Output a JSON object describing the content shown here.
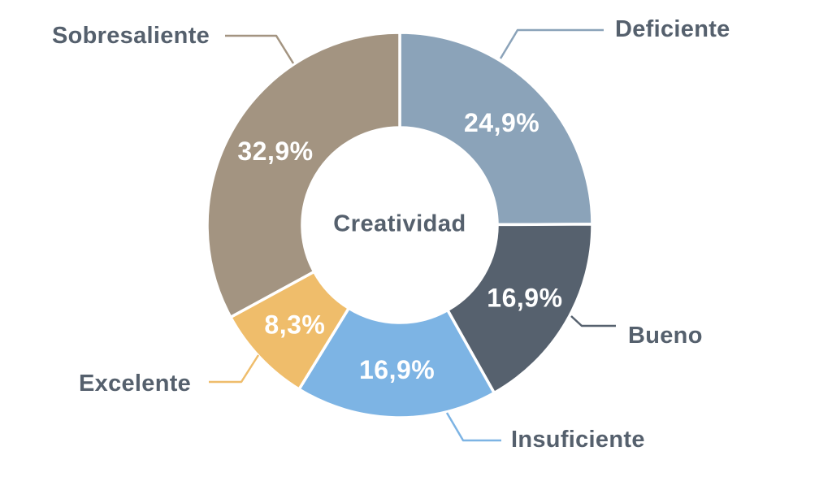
{
  "chart_data": {
    "type": "pie",
    "subtype": "donut",
    "title": "Creatividad",
    "center_label": "Creatividad",
    "start_angle_deg": 0,
    "direction": "clockwise",
    "legend_position": "outside-callouts",
    "background_color": "#ffffff",
    "category_label_color": "#55606d",
    "percent_label_color": "#ffffff",
    "slices": [
      {
        "name": "Deficiente",
        "value": 24.9,
        "display": "24,9%",
        "color": "#8ba3b9"
      },
      {
        "name": "Bueno",
        "value": 16.9,
        "display": "16,9%",
        "color": "#56616e"
      },
      {
        "name": "Insuficiente",
        "value": 16.9,
        "display": "16,9%",
        "color": "#7db4e4"
      },
      {
        "name": "Excelente",
        "value": 8.3,
        "display": "8,3%",
        "color": "#efbd6b"
      },
      {
        "name": "Sobresaliente",
        "value": 32.9,
        "display": "32,9%",
        "color": "#a39481"
      }
    ]
  }
}
